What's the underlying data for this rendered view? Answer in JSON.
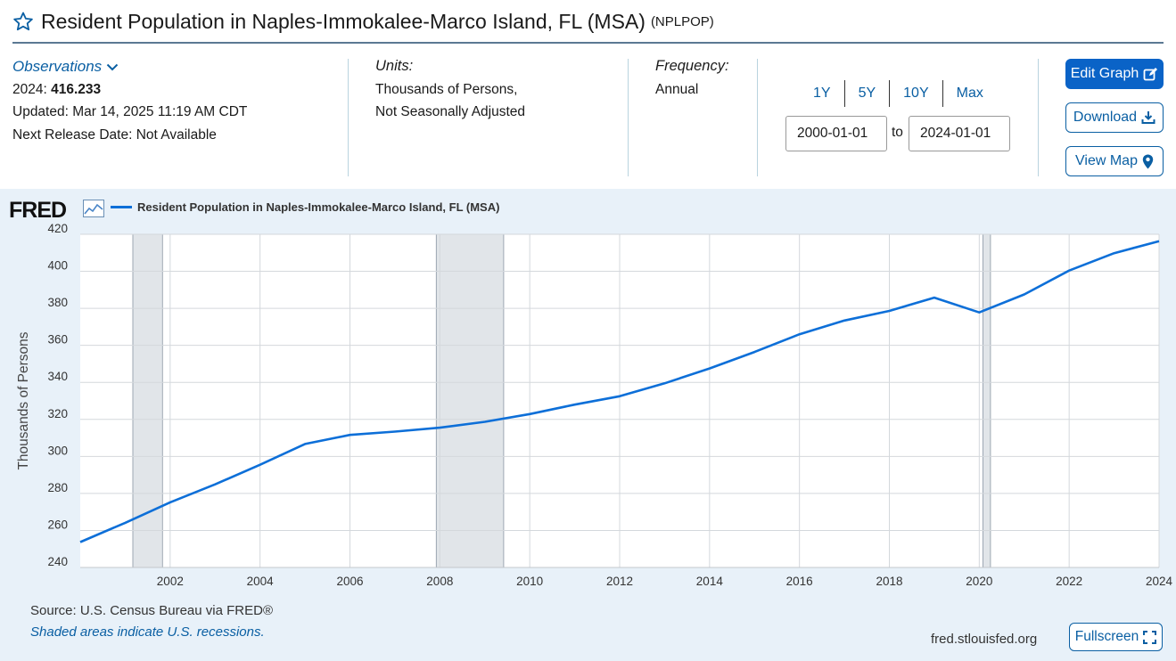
{
  "header": {
    "title": "Resident Population in Naples-Immokalee-Marco Island, FL (MSA)",
    "series_id": "(NPLPOP)"
  },
  "observations": {
    "toggle_label": "Observations",
    "latest_period": "2024:",
    "latest_value": "416.233",
    "updated": "Updated: Mar 14, 2025 11:19 AM CDT",
    "next_release": "Next Release Date: Not Available"
  },
  "units": {
    "label": "Units:",
    "line1": "Thousands of Persons,",
    "line2": "Not Seasonally Adjusted"
  },
  "frequency": {
    "label": "Frequency:",
    "value": "Annual"
  },
  "date_range": {
    "links": [
      "1Y",
      "5Y",
      "10Y",
      "Max"
    ],
    "start": "2000-01-01",
    "to_label": "to",
    "end": "2024-01-01"
  },
  "actions": {
    "edit_graph": "Edit Graph",
    "download": "Download",
    "view_map": "View Map",
    "fullscreen": "Fullscreen"
  },
  "footer": {
    "source": "Source: U.S. Census Bureau via FRED®",
    "recession_note": "Shaded areas indicate U.S. recessions.",
    "site": "fred.stlouisfed.org"
  },
  "logo_text": "FRED",
  "colors": {
    "accent": "#0a63c7",
    "line": "#0d6fd8",
    "plot_bg": "#e8f1f9",
    "recession": "#e1e5e9"
  },
  "chart_data": {
    "type": "line",
    "title": "Resident Population in Naples-Immokalee-Marco Island, FL (MSA)",
    "xlabel": "",
    "ylabel": "Thousands of Persons",
    "xlim": [
      2000,
      2024
    ],
    "ylim": [
      240,
      420
    ],
    "y_ticks": [
      240,
      260,
      280,
      300,
      320,
      340,
      360,
      380,
      400,
      420
    ],
    "x_ticks": [
      2002,
      2004,
      2006,
      2008,
      2010,
      2012,
      2014,
      2016,
      2018,
      2020,
      2022,
      2024
    ],
    "grid": true,
    "legend": "top-left",
    "recessions": [
      [
        2001.17,
        2001.83
      ],
      [
        2007.92,
        2009.42
      ],
      [
        2020.08,
        2020.25
      ]
    ],
    "series": [
      {
        "name": "Resident Population in Naples-Immokalee-Marco Island, FL (MSA)",
        "x": [
          2000,
          2001,
          2002,
          2003,
          2004,
          2005,
          2006,
          2007,
          2008,
          2009,
          2010,
          2011,
          2012,
          2013,
          2014,
          2015,
          2016,
          2017,
          2018,
          2019,
          2020,
          2021,
          2022,
          2023,
          2024
        ],
        "values": [
          253.7,
          264.1,
          275.2,
          284.9,
          295.5,
          306.7,
          311.6,
          313.4,
          315.5,
          318.7,
          322.9,
          328.0,
          332.5,
          339.5,
          347.5,
          356.4,
          366.0,
          373.4,
          378.6,
          385.8,
          377.8,
          387.5,
          400.4,
          409.8,
          416.233
        ]
      }
    ]
  }
}
